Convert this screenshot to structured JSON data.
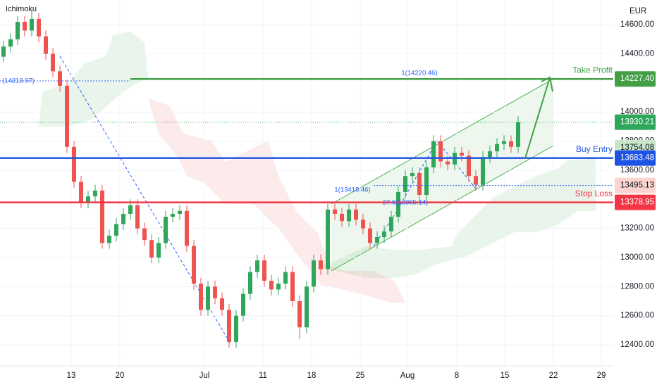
{
  "chart_data": {
    "type": "candlestick",
    "indicator_label": "Ichimoku",
    "currency": "EUR",
    "up_color": "#2fa65a",
    "down_color": "#ef5350",
    "xlim": [
      -0.5,
      86.5
    ],
    "xticks": [
      {
        "value": 9.6,
        "label": "13"
      },
      {
        "value": 16.5,
        "label": "20"
      },
      {
        "value": 28.5,
        "label": "Jul"
      },
      {
        "value": 36.8,
        "label": "11"
      },
      {
        "value": 43.7,
        "label": "18"
      },
      {
        "value": 50.6,
        "label": "25"
      },
      {
        "value": 57.3,
        "label": "Aug"
      },
      {
        "value": 64.3,
        "label": "8"
      },
      {
        "value": 71.1,
        "label": "15"
      },
      {
        "value": 78,
        "label": "22"
      },
      {
        "value": 84.8,
        "label": "29"
      }
    ],
    "ylim": [
      12255,
      14770
    ],
    "yticks": [
      {
        "value": 14600,
        "label": "14600.00"
      },
      {
        "value": 14400,
        "label": "14400.00"
      },
      {
        "value": 14000,
        "label": "14000.00"
      },
      {
        "value": 13800,
        "label": "13800.00"
      },
      {
        "value": 13600,
        "label": "13600.00"
      },
      {
        "value": 13200,
        "label": "13200.00"
      },
      {
        "value": 13000,
        "label": "13000.00"
      },
      {
        "value": 12800,
        "label": "12800.00"
      },
      {
        "value": 12600,
        "label": "12600.00"
      },
      {
        "value": 12400,
        "label": "12400.00"
      }
    ],
    "x": [
      0,
      1,
      2,
      3,
      4,
      5,
      6,
      7,
      8,
      9,
      10,
      11,
      12,
      13,
      14,
      15,
      16,
      17,
      18,
      19,
      20,
      21,
      22,
      23,
      24,
      25,
      26,
      27,
      28,
      29,
      30,
      31,
      32,
      33,
      34,
      35,
      36,
      37,
      38,
      39,
      40,
      41,
      42,
      43,
      44,
      45,
      46,
      47,
      48,
      49,
      50,
      51,
      52,
      53,
      54,
      55,
      56,
      57,
      58,
      59,
      60,
      61,
      62,
      63,
      64,
      65,
      66,
      67,
      68,
      69,
      70,
      71,
      72,
      73
    ],
    "open": [
      14380,
      14450,
      14500,
      14620,
      14560,
      14640,
      14520,
      14400,
      14280,
      14180,
      13760,
      13520,
      13380,
      13420,
      13460,
      13100,
      13150,
      13230,
      13300,
      13360,
      13200,
      13120,
      13000,
      13100,
      13280,
      13300,
      13320,
      13080,
      12820,
      12640,
      12800,
      12720,
      12640,
      12420,
      12600,
      12750,
      12900,
      12980,
      12840,
      12780,
      12820,
      12900,
      12700,
      12520,
      12800,
      12980,
      12920,
      13330,
      13300,
      13250,
      13330,
      13260,
      13200,
      13100,
      13140,
      13180,
      13280,
      13450,
      13560,
      13580,
      13430,
      13620,
      13800,
      13660,
      13640,
      13720,
      13700,
      13560,
      13500,
      13690,
      13730,
      13780,
      13800,
      13760
    ],
    "high": [
      14490,
      14540,
      14660,
      14660,
      14700,
      14680,
      14560,
      14440,
      14320,
      14220,
      13800,
      13560,
      13460,
      13500,
      13500,
      13190,
      13270,
      13340,
      13400,
      13400,
      13240,
      13160,
      13140,
      13320,
      13340,
      13360,
      13360,
      13120,
      12860,
      12840,
      12840,
      12760,
      12680,
      12640,
      12790,
      12940,
      13020,
      13020,
      12880,
      12860,
      12940,
      12940,
      12740,
      12840,
      13020,
      13020,
      13370,
      13370,
      13340,
      13370,
      13370,
      13300,
      13240,
      13180,
      13220,
      13320,
      13490,
      13600,
      13620,
      13620,
      13660,
      13840,
      13840,
      13700,
      13760,
      13760,
      13740,
      13600,
      13730,
      13770,
      13820,
      13840,
      13840,
      13970
    ],
    "low": [
      14340,
      14410,
      14460,
      14520,
      14520,
      14480,
      14360,
      14240,
      14140,
      13720,
      13480,
      13340,
      13340,
      13380,
      13060,
      13060,
      13110,
      13190,
      13260,
      13160,
      13080,
      12960,
      12960,
      13060,
      13240,
      13260,
      13040,
      12780,
      12600,
      12600,
      12680,
      12600,
      12380,
      12380,
      12560,
      12710,
      12860,
      12800,
      12740,
      12740,
      12780,
      12660,
      12440,
      12480,
      12760,
      12880,
      12880,
      13260,
      13210,
      13210,
      13220,
      13160,
      13060,
      13060,
      13100,
      13140,
      13240,
      13410,
      13520,
      13390,
      13390,
      13580,
      13620,
      13600,
      13600,
      13660,
      13520,
      13460,
      13460,
      13650,
      13690,
      13740,
      13720,
      13720
    ],
    "close": [
      14450,
      14500,
      14620,
      14560,
      14640,
      14520,
      14400,
      14280,
      14180,
      13760,
      13520,
      13380,
      13420,
      13460,
      13100,
      13150,
      13230,
      13300,
      13360,
      13200,
      13120,
      13000,
      13100,
      13280,
      13300,
      13320,
      13080,
      12820,
      12640,
      12800,
      12720,
      12640,
      12420,
      12600,
      12750,
      12900,
      12980,
      12840,
      12780,
      12820,
      12900,
      12700,
      12520,
      12800,
      12980,
      12920,
      13330,
      13300,
      13250,
      13330,
      13260,
      13200,
      13100,
      13140,
      13180,
      13280,
      13450,
      13560,
      13580,
      13430,
      13620,
      13800,
      13660,
      13640,
      13720,
      13700,
      13560,
      13500,
      13690,
      13730,
      13780,
      13800,
      13760,
      13930
    ],
    "levels": [
      {
        "name": "Take Profit",
        "value": 14227.4,
        "value_label": "14227.40",
        "color": "#43a047"
      },
      {
        "name": "Buy Entry",
        "value": 13683.48,
        "value_label": "13683.48",
        "color": "#1e53e5"
      },
      {
        "name": "Stop Loss",
        "value": 13378.95,
        "value_label": "13378.95",
        "color": "#f23645"
      }
    ],
    "price_tags": [
      {
        "value": 13930.21,
        "color": "#2fa65a",
        "text_color": "#ffffff"
      },
      {
        "value": 13754.08,
        "color": "#c8e6c9",
        "text_color": "#131722"
      },
      {
        "value": 13495.13,
        "color": "#fbd3cf",
        "text_color": "#131722"
      }
    ],
    "left_level": {
      "value": 14213.97,
      "label": "(14213.97)"
    },
    "fib_labels": [
      "1(14220.46)",
      "1(13418.46)",
      "27.6(13365.14)"
    ]
  }
}
